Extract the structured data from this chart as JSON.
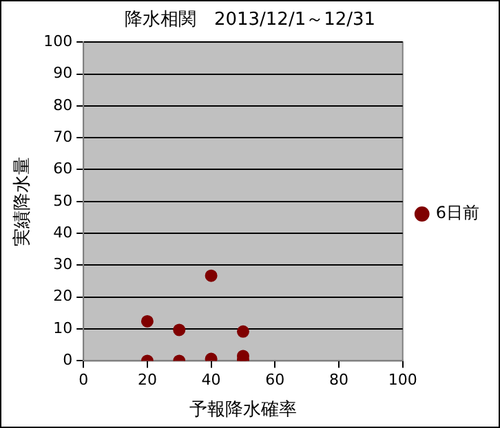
{
  "chart_data": {
    "type": "scatter",
    "title": "降水相関　2013/12/1～12/31",
    "xlabel": "予報降水確率",
    "ylabel": "実績降水量",
    "series": [
      {
        "name": "6日前",
        "color": "#800000",
        "x": [
          20,
          30,
          40,
          50,
          20,
          30,
          40,
          50,
          50
        ],
        "values": [
          12.4,
          9.7,
          26.7,
          9.2,
          0,
          0,
          0.6,
          1.5,
          0.3
        ]
      }
    ],
    "xlim": [
      0,
      100
    ],
    "xticks": [
      0,
      20,
      40,
      60,
      80,
      100
    ],
    "ylim": [
      0,
      100
    ],
    "yticks": [
      0,
      10,
      20,
      30,
      40,
      50,
      60,
      70,
      80,
      90,
      100
    ],
    "grid": "y",
    "legend": "right",
    "marker": "circle"
  }
}
